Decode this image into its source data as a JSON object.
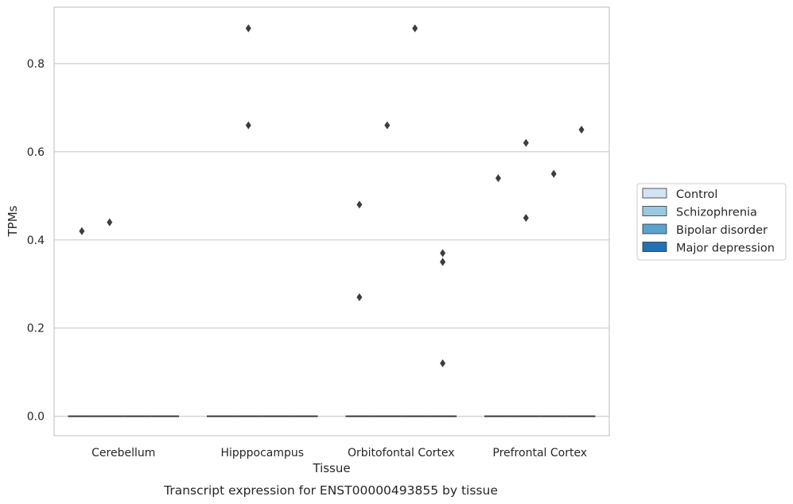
{
  "caption": "Transcript expression for ENST00000493855 by tissue",
  "chart_data": {
    "type": "box",
    "xlabel": "Tissue",
    "ylabel": "TPMs",
    "categories": [
      "Cerebellum",
      "Hipppocampus",
      "Orbitofontal Cortex",
      "Prefrontal Cortex"
    ],
    "ylim": [
      -0.044,
      0.928
    ],
    "yticks": [
      0.0,
      0.2,
      0.4,
      0.6,
      0.8
    ],
    "ytick_labels": [
      "0.0",
      "0.2",
      "0.4",
      "0.6",
      "0.8"
    ],
    "grid": "horizontal",
    "legend_position": "right",
    "series": [
      {
        "name": "Control",
        "color": "#d2e3f3",
        "outliers": [
          [
            0.42
          ],
          [],
          [
            0.48,
            0.27
          ],
          [
            0.54
          ]
        ]
      },
      {
        "name": "Schizophrenia",
        "color": "#9ac8e0",
        "outliers": [
          [
            0.44
          ],
          [
            0.88,
            0.66
          ],
          [
            0.66
          ],
          [
            0.62,
            0.45
          ]
        ]
      },
      {
        "name": "Bipolar disorder",
        "color": "#5ba3cf",
        "outliers": [
          [],
          [],
          [
            0.88
          ],
          [
            0.55
          ]
        ]
      },
      {
        "name": "Major depression",
        "color": "#2171b5",
        "outliers": [
          [],
          [],
          [
            0.37,
            0.35,
            0.35,
            0.12
          ],
          [
            0.65
          ]
        ]
      }
    ],
    "box_median": 0.0
  }
}
